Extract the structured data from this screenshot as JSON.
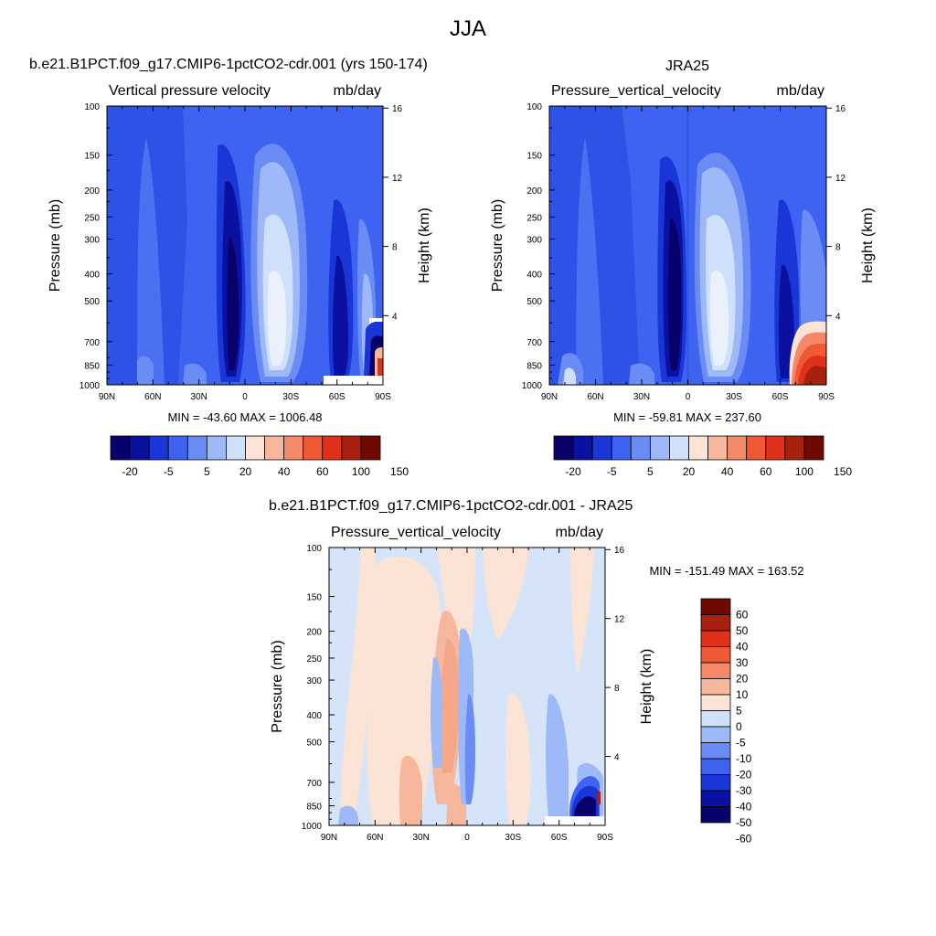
{
  "main_title": "JJA",
  "colors": {
    "div_scale": [
      "#08006b",
      "#0a11a0",
      "#1b36d6",
      "#3e63f0",
      "#6a8cf4",
      "#9db9f7",
      "#cfe1fa",
      "#fbe4d5",
      "#f7b79c",
      "#f4896a",
      "#ef5a35",
      "#e0321a",
      "#a8210e",
      "#6e0a00"
    ],
    "diff_scale": [
      "#08006b",
      "#0a11a0",
      "#1b36d6",
      "#3e63f0",
      "#6a8cf4",
      "#9db9f7",
      "#cfe1fa",
      "#fbe4d5",
      "#f7b79c",
      "#f4896a",
      "#ef5a35",
      "#e0321a",
      "#a8210e",
      "#6e0a00"
    ]
  },
  "chart_data": [
    {
      "id": "model",
      "type": "heatmap",
      "title": "b.e21.B1PCT.f09_g17.CMIP6-1pctCO2-cdr.001 (yrs 150-174)",
      "left_label": "Vertical pressure velocity",
      "right_label": "mb/day",
      "ylabel": "Pressure (mb)",
      "ylabel_right": "Height (km)",
      "x_ticks": [
        "90N",
        "60N",
        "30N",
        "0",
        "30S",
        "60S",
        "90S"
      ],
      "y_ticks": [
        "100",
        "150",
        "200",
        "250",
        "300",
        "400",
        "500",
        "700",
        "850",
        "1000"
      ],
      "y_ticks_right": [
        "16",
        "12",
        "8",
        "4"
      ],
      "stats": "MIN = -43.60  MAX = 1006.48",
      "colorbar_labels": [
        "-20",
        "-5",
        "5",
        "20",
        "40",
        "60",
        "100",
        "150"
      ],
      "xlim": [
        90,
        -90
      ],
      "ylim": [
        1000,
        100
      ]
    },
    {
      "id": "obs",
      "type": "heatmap",
      "title": "JRA25",
      "left_label": "Pressure_vertical_velocity",
      "right_label": "mb/day",
      "ylabel": "Pressure (mb)",
      "ylabel_right": "Height (km)",
      "x_ticks": [
        "90N",
        "60N",
        "30N",
        "0",
        "30S",
        "60S",
        "90S"
      ],
      "y_ticks": [
        "100",
        "150",
        "200",
        "250",
        "300",
        "400",
        "500",
        "700",
        "850",
        "1000"
      ],
      "y_ticks_right": [
        "16",
        "12",
        "8",
        "4"
      ],
      "stats": "MIN = -59.81  MAX = 237.60",
      "colorbar_labels": [
        "-20",
        "-5",
        "5",
        "20",
        "40",
        "60",
        "100",
        "150"
      ],
      "xlim": [
        90,
        -90
      ],
      "ylim": [
        1000,
        100
      ]
    },
    {
      "id": "diff",
      "type": "heatmap",
      "title": "b.e21.B1PCT.f09_g17.CMIP6-1pctCO2-cdr.001 - JRA25",
      "left_label": "Pressure_vertical_velocity",
      "right_label": "mb/day",
      "ylabel": "Pressure (mb)",
      "ylabel_right": "Height (km)",
      "x_ticks": [
        "90N",
        "60N",
        "30N",
        "0",
        "30S",
        "60S",
        "90S"
      ],
      "y_ticks": [
        "100",
        "150",
        "200",
        "250",
        "300",
        "400",
        "500",
        "700",
        "850",
        "1000"
      ],
      "y_ticks_right": [
        "16",
        "12",
        "8",
        "4"
      ],
      "stats": "MIN = -151.49  MAX = 163.52",
      "colorbar_labels": [
        "60",
        "50",
        "40",
        "30",
        "20",
        "10",
        "5",
        "0",
        "-5",
        "-10",
        "-20",
        "-30",
        "-40",
        "-50",
        "-60"
      ],
      "xlim": [
        90,
        -90
      ],
      "ylim": [
        1000,
        100
      ]
    }
  ]
}
